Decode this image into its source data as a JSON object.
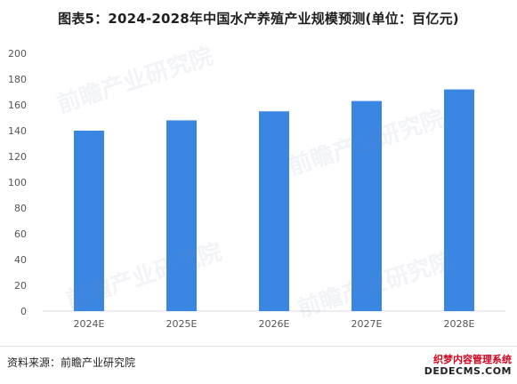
{
  "title": "图表5：2024-2028年中国水产养殖产业规模预测(单位：百亿元)",
  "source": "资料来源：前瞻产业研究院",
  "watermark_text": "前瞻产业研究院",
  "corner_brand": {
    "line1": "织梦内容管理系统",
    "line2": "DEDECMS.COM"
  },
  "colors": {
    "bar": "#3a86e3",
    "axis_text": "#555555",
    "grid": "#e6e6e6"
  },
  "chart_data": {
    "type": "bar",
    "title": "图表5：2024-2028年中国水产养殖产业规模预测(单位：百亿元)",
    "categories": [
      "2024E",
      "2025E",
      "2026E",
      "2027E",
      "2028E"
    ],
    "values": [
      140,
      148,
      155,
      163,
      172
    ],
    "ylim": [
      0,
      200
    ],
    "yticks": [
      0,
      20,
      40,
      60,
      80,
      100,
      120,
      140,
      160,
      180,
      200
    ],
    "grid": false,
    "legend": "none"
  }
}
